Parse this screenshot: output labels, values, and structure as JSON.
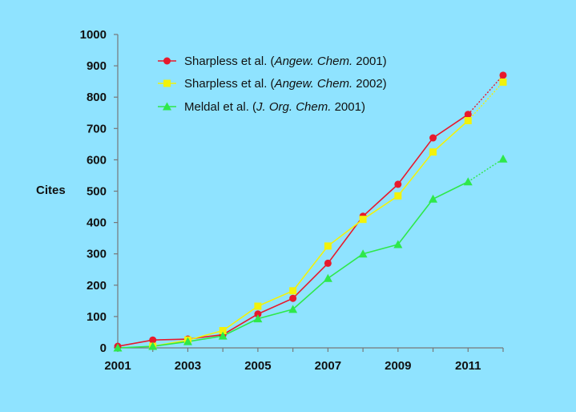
{
  "chart_data": {
    "type": "line",
    "ylabel": "Cites",
    "xlabel": "",
    "x": [
      2001,
      2002,
      2003,
      2004,
      2005,
      2006,
      2007,
      2008,
      2009,
      2010,
      2011,
      2012
    ],
    "xticks": [
      "2001",
      "2003",
      "2005",
      "2007",
      "2009",
      "2011"
    ],
    "yticks": [
      "0",
      "100",
      "200",
      "300",
      "400",
      "500",
      "600",
      "700",
      "800",
      "900",
      "1000"
    ],
    "ylim": [
      0,
      1000
    ],
    "xlim": [
      2001,
      2012
    ],
    "grid": false,
    "legend_position": "top-left",
    "series": [
      {
        "name": "Sharpless et al. (Angew. Chem. 2001)",
        "label_parts": [
          "Sharpless et al. (",
          "Angew. Chem.",
          " 2001)"
        ],
        "color": "#e8192c",
        "marker": "circle",
        "values": [
          5,
          25,
          28,
          42,
          108,
          158,
          270,
          420,
          522,
          670,
          745,
          870
        ],
        "dotted_last_segment": true
      },
      {
        "name": "Sharpless et al. (Angew. Chem. 2002)",
        "label_parts": [
          "Sharpless et al. (",
          "Angew. Chem.",
          " 2002)"
        ],
        "color": "#f2f20a",
        "marker": "square",
        "values": [
          null,
          5,
          25,
          55,
          133,
          182,
          325,
          410,
          485,
          625,
          725,
          848
        ],
        "dotted_last_segment": true
      },
      {
        "name": "Meldal et al. (J. Org. Chem. 2001)",
        "label_parts": [
          "Meldal et al. (",
          "J. Org. Chem.",
          " 2001)"
        ],
        "color": "#2ee84a",
        "marker": "triangle",
        "values": [
          0,
          5,
          20,
          38,
          93,
          123,
          222,
          300,
          330,
          475,
          530,
          603
        ],
        "dotted_last_segment": true
      }
    ]
  }
}
